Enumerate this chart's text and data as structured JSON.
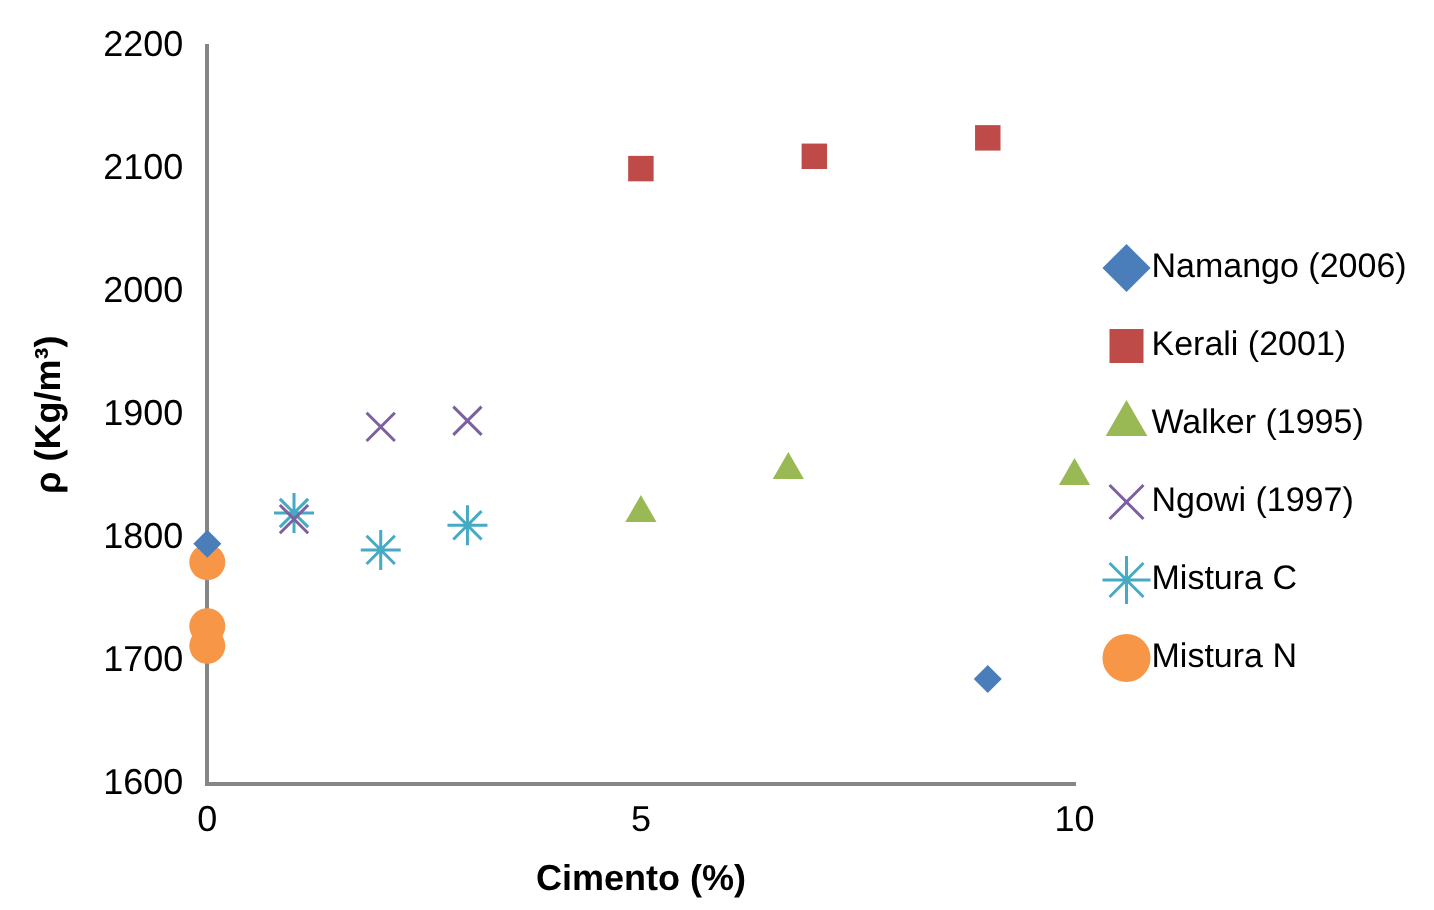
{
  "chart_data": {
    "type": "scatter",
    "xlabel": "Cimento (%)",
    "ylabel": "ρ (Kg/m³)",
    "xlim": [
      0,
      10
    ],
    "xticks": [
      0,
      5,
      10
    ],
    "ylim": [
      1600,
      2200
    ],
    "yticks": [
      1600,
      1700,
      1800,
      1900,
      2000,
      2100,
      2200
    ],
    "grid": false,
    "legend": "right",
    "series": [
      {
        "name": "Namango (2006)",
        "color": "#4a7ebb",
        "marker": "diamond",
        "x": [
          0,
          9
        ],
        "values": [
          1795,
          1685
        ]
      },
      {
        "name": "Kerali (2001)",
        "color": "#be4b48",
        "marker": "square",
        "x": [
          5,
          7,
          9
        ],
        "values": [
          2100,
          2110,
          2125
        ]
      },
      {
        "name": "Walker (1995)",
        "color": "#98b954",
        "marker": "triangle",
        "x": [
          5,
          6.7,
          10
        ],
        "values": [
          1820,
          1855,
          1850
        ]
      },
      {
        "name": "Ngowi (1997)",
        "color": "#7d60a0",
        "marker": "cross",
        "x": [
          1,
          2,
          3
        ],
        "values": [
          1815,
          1890,
          1895
        ]
      },
      {
        "name": "Mistura C",
        "color": "#46aac5",
        "x": [
          1,
          2,
          3
        ],
        "values": [
          1820,
          1790,
          1810
        ]
      },
      {
        "name": "Mistura N",
        "color": "#f79646",
        "marker": "circle",
        "x": [
          0,
          0,
          0
        ],
        "values": [
          1780,
          1728,
          1712
        ]
      }
    ]
  }
}
